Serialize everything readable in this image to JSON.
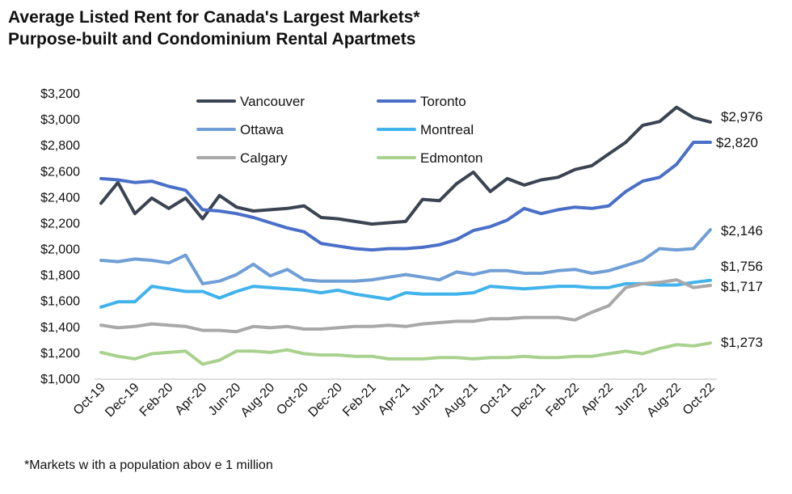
{
  "title_line1": "Average Listed Rent for Canada's Largest Markets*",
  "title_line2": "Purpose-built and Condominium Rental Apartmets",
  "footnote": "*Markets w ith a population abov e 1 million",
  "chart_data": {
    "type": "line",
    "title": "Average Listed Rent for Canada's Largest Markets* Purpose-built and Condominium Rental Apartmets",
    "ylim": [
      1000,
      3200
    ],
    "y_ticks": [
      "$1,000",
      "$1,200",
      "$1,400",
      "$1,600",
      "$1,800",
      "$2,000",
      "$2,200",
      "$2,400",
      "$2,600",
      "$2,800",
      "$3,000",
      "$3,200"
    ],
    "x_tick_labels": [
      "Oct-19",
      "Dec-19",
      "Feb-20",
      "Apr-20",
      "Jun-20",
      "Aug-20",
      "Oct-20",
      "Dec-20",
      "Feb-21",
      "Apr-21",
      "Jun-21",
      "Aug-21",
      "Oct-21",
      "Dec-21",
      "Feb-22",
      "Apr-22",
      "Jun-22",
      "Aug-22",
      "Oct-22"
    ],
    "x": [
      "Oct-19",
      "Nov-19",
      "Dec-19",
      "Jan-20",
      "Feb-20",
      "Mar-20",
      "Apr-20",
      "May-20",
      "Jun-20",
      "Jul-20",
      "Aug-20",
      "Sep-20",
      "Oct-20",
      "Nov-20",
      "Dec-20",
      "Jan-21",
      "Feb-21",
      "Mar-21",
      "Apr-21",
      "May-21",
      "Jun-21",
      "Jul-21",
      "Aug-21",
      "Sep-21",
      "Oct-21",
      "Nov-21",
      "Dec-21",
      "Jan-22",
      "Feb-22",
      "Mar-22",
      "Apr-22",
      "May-22",
      "Jun-22",
      "Jul-22",
      "Aug-22",
      "Sep-22",
      "Oct-22"
    ],
    "grid": false,
    "legend_position": "top",
    "series": [
      {
        "name": "Vancouver",
        "color": "#3b4452",
        "values": [
          2350,
          2510,
          2270,
          2390,
          2310,
          2390,
          2230,
          2410,
          2320,
          2290,
          2300,
          2310,
          2330,
          2240,
          2230,
          2210,
          2190,
          2200,
          2210,
          2380,
          2370,
          2500,
          2590,
          2440,
          2540,
          2490,
          2530,
          2550,
          2610,
          2640,
          2730,
          2820,
          2950,
          2980,
          3090,
          3010,
          2976
        ],
        "end_label": "$2,976"
      },
      {
        "name": "Toronto",
        "color": "#4a6fc8",
        "values": [
          2540,
          2530,
          2510,
          2520,
          2480,
          2450,
          2300,
          2290,
          2270,
          2240,
          2200,
          2160,
          2130,
          2040,
          2020,
          2000,
          1990,
          2000,
          2000,
          2010,
          2030,
          2070,
          2140,
          2170,
          2220,
          2310,
          2270,
          2300,
          2320,
          2310,
          2330,
          2440,
          2520,
          2550,
          2650,
          2820,
          2820
        ],
        "end_label": "$2,820"
      },
      {
        "name": "Ottawa",
        "color": "#6f9fd6",
        "values": [
          1910,
          1900,
          1920,
          1910,
          1890,
          1950,
          1730,
          1750,
          1800,
          1880,
          1790,
          1840,
          1760,
          1750,
          1750,
          1750,
          1760,
          1780,
          1800,
          1780,
          1760,
          1820,
          1800,
          1830,
          1830,
          1810,
          1810,
          1830,
          1840,
          1810,
          1830,
          1870,
          1910,
          2000,
          1990,
          2000,
          2146
        ],
        "end_label": "$2,146"
      },
      {
        "name": "Montreal",
        "color": "#41b3ec",
        "values": [
          1550,
          1590,
          1590,
          1710,
          1690,
          1670,
          1670,
          1620,
          1670,
          1710,
          1700,
          1690,
          1680,
          1660,
          1680,
          1650,
          1630,
          1610,
          1660,
          1650,
          1650,
          1650,
          1660,
          1710,
          1700,
          1690,
          1700,
          1710,
          1710,
          1700,
          1700,
          1730,
          1730,
          1720,
          1720,
          1740,
          1756
        ],
        "end_label": "$1,756"
      },
      {
        "name": "Calgary",
        "color": "#a8a8a8",
        "values": [
          1410,
          1390,
          1400,
          1420,
          1410,
          1400,
          1370,
          1370,
          1360,
          1400,
          1390,
          1400,
          1380,
          1380,
          1390,
          1400,
          1400,
          1410,
          1400,
          1420,
          1430,
          1440,
          1440,
          1460,
          1460,
          1470,
          1470,
          1470,
          1450,
          1510,
          1560,
          1700,
          1730,
          1740,
          1760,
          1700,
          1717
        ],
        "end_label": "$1,717"
      },
      {
        "name": "Edmonton",
        "color": "#a9d18e",
        "values": [
          1200,
          1170,
          1150,
          1190,
          1200,
          1210,
          1110,
          1140,
          1210,
          1210,
          1200,
          1220,
          1190,
          1180,
          1180,
          1170,
          1170,
          1150,
          1150,
          1150,
          1160,
          1160,
          1150,
          1160,
          1160,
          1170,
          1160,
          1160,
          1170,
          1170,
          1190,
          1210,
          1190,
          1230,
          1260,
          1250,
          1273
        ],
        "end_label": "$1,273"
      }
    ]
  }
}
